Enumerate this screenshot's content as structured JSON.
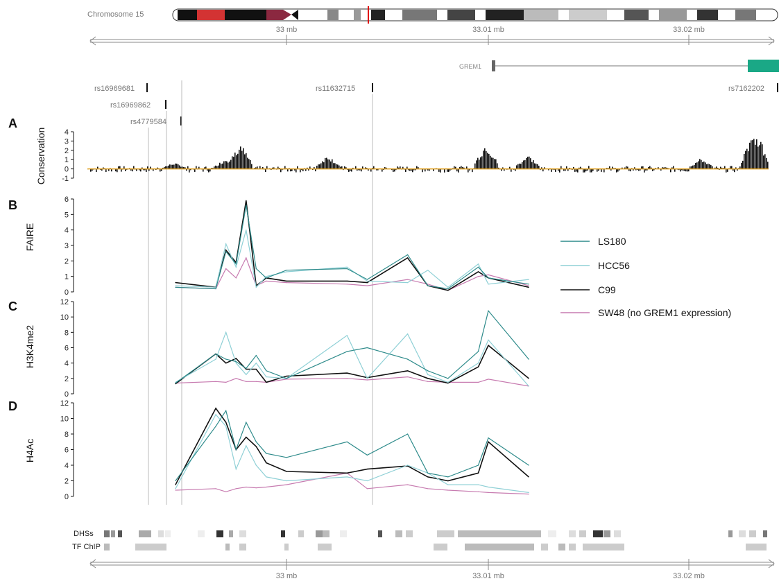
{
  "ideogram": {
    "label": "Chromosome 15",
    "ticks": [
      "33 mb",
      "33.01 mb",
      "33.02 mb"
    ]
  },
  "gene": {
    "name": "GREM1"
  },
  "snps": [
    "rs16969681",
    "rs16969862",
    "rs4779584",
    "rs11632715",
    "rs7162202"
  ],
  "panels": {
    "A": {
      "letter": "A",
      "ylabel": "Conservation",
      "yticks": [
        "4",
        "3",
        "2",
        "1",
        "0",
        "-1"
      ]
    },
    "B": {
      "letter": "B",
      "ylabel": "FAIRE",
      "yticks": [
        "6",
        "5",
        "4",
        "3",
        "2",
        "1",
        "0"
      ]
    },
    "C": {
      "letter": "C",
      "ylabel": "H3K4me2",
      "yticks": [
        "12",
        "10",
        "8",
        "6",
        "4",
        "2",
        "0"
      ]
    },
    "D": {
      "letter": "D",
      "ylabel": "H4Ac",
      "yticks": [
        "12",
        "10",
        "8",
        "6",
        "4",
        "2",
        "0"
      ]
    }
  },
  "legend": {
    "LS180": "LS180",
    "HCC56": "HCC56",
    "C99": "C99",
    "SW48": "SW48 (no GREM1 expression)"
  },
  "tracks": {
    "dhs": "DHSs",
    "tf": "TF ChIP"
  },
  "bottom_axis": {
    "ticks": [
      "33 mb",
      "33.01 mb",
      "33.02 mb"
    ]
  },
  "colors": {
    "LS180": "#2e8b8b",
    "HCC56": "#8fd0d6",
    "C99": "#111111",
    "SW48": "#c77bb0",
    "conservation_line": "#e0a020",
    "gene": "#1aa886",
    "ideogram_band_red": "#d33333"
  },
  "chart_data": {
    "type": "line",
    "x": [
      32.9945,
      32.9965,
      32.997,
      32.9975,
      32.998,
      32.9985,
      32.999,
      33.0,
      33.003,
      33.004,
      33.006,
      33.007,
      33.008,
      33.0095,
      33.01,
      33.012
    ],
    "series_faire": [
      {
        "name": "LS180",
        "values": [
          0.3,
          0.2,
          2.6,
          1.8,
          5.6,
          1.5,
          0.9,
          1.4,
          1.5,
          0.8,
          2.4,
          0.4,
          0.2,
          1.6,
          0.9,
          0.5
        ]
      },
      {
        "name": "HCC56",
        "values": [
          0.4,
          0.3,
          3.1,
          1.6,
          4.0,
          0.3,
          1.0,
          1.3,
          1.6,
          0.7,
          0.6,
          1.4,
          0.3,
          1.8,
          0.5,
          0.8
        ]
      },
      {
        "name": "C99",
        "values": [
          0.6,
          0.3,
          2.7,
          1.9,
          5.9,
          0.4,
          0.9,
          0.7,
          0.7,
          0.6,
          2.2,
          0.4,
          0.1,
          1.3,
          0.9,
          0.3
        ]
      },
      {
        "name": "SW48 (no GREM1 expression)",
        "values": [
          0.3,
          0.2,
          1.5,
          0.9,
          2.2,
          0.4,
          0.7,
          0.6,
          0.5,
          0.4,
          0.8,
          0.5,
          0.1,
          1.0,
          1.1,
          0.4
        ]
      }
    ],
    "series_h3k4me2": [
      {
        "name": "LS180",
        "values": [
          1.4,
          5.2,
          4.5,
          4.2,
          3.3,
          5.0,
          3.0,
          2.0,
          5.5,
          6.0,
          4.5,
          3.0,
          2.0,
          5.5,
          10.8,
          4.5
        ]
      },
      {
        "name": "HCC56",
        "values": [
          1.5,
          4.5,
          8.0,
          4.0,
          2.5,
          4.0,
          2.2,
          2.0,
          7.6,
          2.0,
          7.8,
          2.5,
          1.5,
          4.0,
          7.0,
          1.0
        ]
      },
      {
        "name": "C99",
        "values": [
          1.3,
          5.2,
          4.0,
          4.6,
          3.2,
          3.2,
          1.5,
          2.3,
          2.7,
          2.1,
          3.0,
          2.0,
          1.4,
          3.5,
          6.3,
          2.0
        ]
      },
      {
        "name": "SW48 (no GREM1 expression)",
        "values": [
          1.4,
          1.6,
          1.5,
          2.0,
          1.6,
          1.6,
          1.5,
          1.9,
          2.0,
          1.8,
          2.2,
          1.6,
          1.5,
          1.5,
          1.9,
          1.0
        ]
      }
    ],
    "series_h4ac": [
      {
        "name": "LS180",
        "values": [
          2.0,
          9.0,
          11.0,
          6.0,
          9.5,
          7.0,
          5.5,
          5.0,
          7.0,
          5.3,
          8.0,
          3.0,
          2.5,
          4.0,
          7.5,
          4.0
        ]
      },
      {
        "name": "HCC56",
        "values": [
          1.0,
          10.5,
          9.0,
          3.5,
          6.5,
          4.0,
          2.5,
          2.0,
          2.5,
          2.0,
          4.0,
          3.0,
          1.5,
          1.5,
          1.2,
          0.5
        ]
      },
      {
        "name": "C99",
        "values": [
          1.5,
          11.3,
          9.5,
          6.0,
          7.6,
          6.4,
          4.3,
          3.2,
          3.0,
          3.5,
          3.9,
          2.5,
          2.0,
          3.0,
          7.0,
          2.5
        ]
      },
      {
        "name": "SW48 (no GREM1 expression)",
        "values": [
          0.8,
          1.0,
          0.6,
          1.0,
          1.2,
          1.1,
          1.2,
          1.5,
          3.0,
          1.0,
          1.5,
          1.0,
          0.8,
          0.6,
          0.5,
          0.3
        ]
      }
    ],
    "ylim_faire": [
      0,
      6
    ],
    "ylim_h3k4me2": [
      0,
      12
    ],
    "ylim_h4ac": [
      0,
      12
    ],
    "ylim_conservation": [
      -1,
      4
    ]
  }
}
